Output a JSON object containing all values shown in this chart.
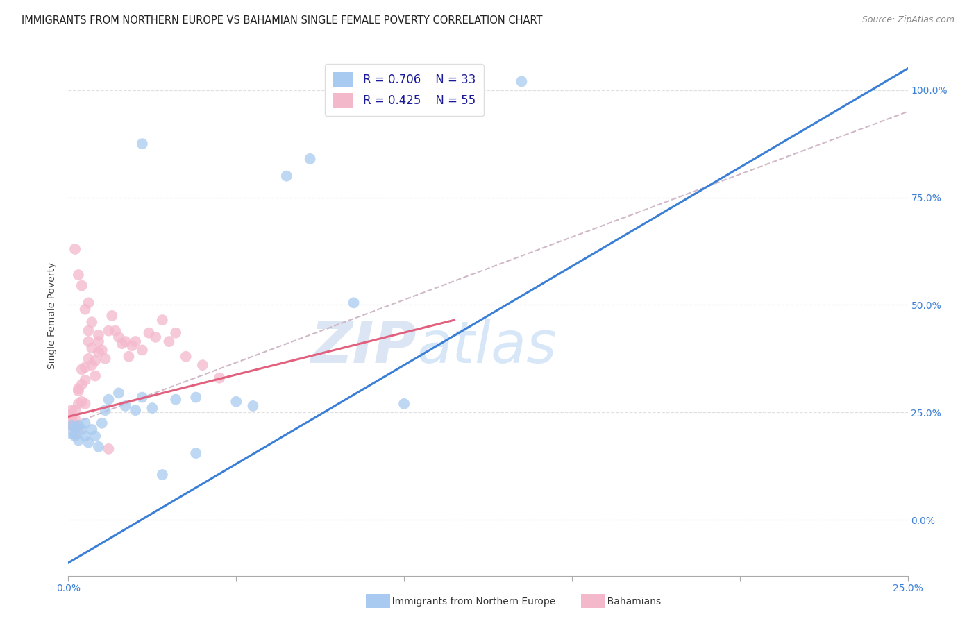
{
  "title": "IMMIGRANTS FROM NORTHERN EUROPE VS BAHAMIAN SINGLE FEMALE POVERTY CORRELATION CHART",
  "source": "Source: ZipAtlas.com",
  "ylabel": "Single Female Poverty",
  "watermark_zip": "ZIP",
  "watermark_atlas": "atlas",
  "legend_blue_r": "R = 0.706",
  "legend_blue_n": "N = 33",
  "legend_pink_r": "R = 0.425",
  "legend_pink_n": "N = 55",
  "blue_scatter_color": "#a8caf0",
  "pink_scatter_color": "#f4b8cb",
  "blue_line_color": "#3a7fd5",
  "pink_line_color": "#e0607e",
  "dashed_line_color": "#d0b8c8",
  "grid_color": "#e0e0e0",
  "right_axis_color": "#3a7fd5",
  "xmin": 0.0,
  "xmax": 0.25,
  "ymin": -0.13,
  "ymax": 1.08,
  "blue_line_x0": 0.0,
  "blue_line_y0": -0.1,
  "blue_line_x1": 0.25,
  "blue_line_y1": 1.05,
  "pink_line_x0": 0.0,
  "pink_line_y0": 0.24,
  "pink_line_x1": 0.115,
  "pink_line_y1": 0.465,
  "dash_line_x0": 0.0,
  "dash_line_y0": 0.22,
  "dash_line_x1": 0.25,
  "dash_line_y1": 0.95,
  "blue_x": [
    0.001,
    0.001,
    0.002,
    0.002,
    0.003,
    0.003,
    0.004,
    0.005,
    0.005,
    0.006,
    0.007,
    0.008,
    0.009,
    0.01,
    0.011,
    0.012,
    0.015,
    0.017,
    0.02,
    0.022,
    0.025,
    0.028,
    0.032,
    0.038,
    0.05,
    0.055,
    0.065,
    0.072,
    0.085,
    0.1,
    0.022,
    0.038,
    0.135
  ],
  "blue_y": [
    0.2,
    0.22,
    0.195,
    0.215,
    0.185,
    0.22,
    0.21,
    0.195,
    0.225,
    0.18,
    0.21,
    0.195,
    0.17,
    0.225,
    0.255,
    0.28,
    0.295,
    0.265,
    0.255,
    0.285,
    0.26,
    0.105,
    0.28,
    0.285,
    0.275,
    0.265,
    0.8,
    0.84,
    0.505,
    0.27,
    0.875,
    0.155,
    1.02
  ],
  "pink_x": [
    0.001,
    0.001,
    0.001,
    0.001,
    0.002,
    0.002,
    0.002,
    0.002,
    0.003,
    0.003,
    0.003,
    0.003,
    0.004,
    0.004,
    0.004,
    0.005,
    0.005,
    0.005,
    0.006,
    0.006,
    0.006,
    0.007,
    0.007,
    0.008,
    0.008,
    0.009,
    0.009,
    0.01,
    0.011,
    0.012,
    0.013,
    0.014,
    0.015,
    0.016,
    0.017,
    0.018,
    0.019,
    0.02,
    0.022,
    0.024,
    0.026,
    0.028,
    0.03,
    0.032,
    0.035,
    0.04,
    0.045,
    0.002,
    0.003,
    0.004,
    0.005,
    0.006,
    0.007,
    0.009,
    0.012
  ],
  "pink_y": [
    0.22,
    0.235,
    0.245,
    0.255,
    0.2,
    0.215,
    0.235,
    0.255,
    0.215,
    0.27,
    0.3,
    0.305,
    0.275,
    0.315,
    0.35,
    0.27,
    0.325,
    0.355,
    0.375,
    0.415,
    0.44,
    0.36,
    0.4,
    0.335,
    0.37,
    0.39,
    0.415,
    0.395,
    0.375,
    0.44,
    0.475,
    0.44,
    0.425,
    0.41,
    0.415,
    0.38,
    0.405,
    0.415,
    0.395,
    0.435,
    0.425,
    0.465,
    0.415,
    0.435,
    0.38,
    0.36,
    0.33,
    0.63,
    0.57,
    0.545,
    0.49,
    0.505,
    0.46,
    0.43,
    0.165
  ],
  "right_yticks": [
    0.0,
    0.25,
    0.5,
    0.75,
    1.0
  ],
  "right_yticklabels": [
    "0.0%",
    "25.0%",
    "50.0%",
    "75.0%",
    "100.0%"
  ],
  "xtick_positions": [
    0.0,
    0.05,
    0.1,
    0.15,
    0.2,
    0.25
  ]
}
